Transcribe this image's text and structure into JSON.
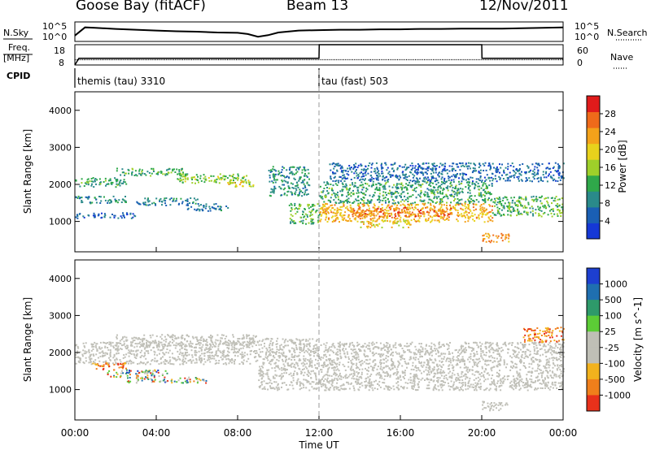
{
  "header": {
    "station": "Goose Bay (fitACF)",
    "beam": "Beam 13",
    "date": "12/Nov/2011"
  },
  "aux": {
    "nsky_label": "N.Sky",
    "nsearch_label": "N.Search",
    "freq_label_1": "Freq.",
    "freq_label_2": "[MHz]",
    "nave_label": "Nave",
    "cpid_label": "CPID",
    "noise_ticks": [
      "10^5",
      "10^0"
    ],
    "freq_ticks": [
      "18",
      "8"
    ],
    "nave_ticks": [
      "60",
      "0"
    ],
    "cpid_segments": [
      {
        "label": "themis (tau) 3310",
        "start_hour": 0,
        "end_hour": 12
      },
      {
        "label": "tau (fast) 503",
        "start_hour": 12,
        "end_hour": 24
      }
    ]
  },
  "colors": {
    "power_scale": [
      "#1538d6",
      "#1a5fb4",
      "#2a8a8a",
      "#2fa84a",
      "#9ed02a",
      "#e8d21c",
      "#f4a21a",
      "#ef6a1a",
      "#e01b1b"
    ],
    "velocity_scale": [
      "#1d3fd0",
      "#1f6fb0",
      "#2e9a6a",
      "#5ccc36",
      "#bfbfb6",
      "#bfbfb6",
      "#f2b21d",
      "#f07f1b",
      "#e8311b"
    ],
    "ground_scatter": "#c0c0b8"
  },
  "chart_data": [
    {
      "type": "line",
      "panel": "noise",
      "x_unit": "hour UT",
      "x": [
        0,
        0.5,
        1,
        2,
        3,
        4,
        5,
        6,
        7,
        8,
        8.5,
        9,
        9.5,
        10,
        11,
        12,
        13,
        14,
        15,
        16,
        17,
        18,
        19,
        20,
        21,
        22,
        23,
        24
      ],
      "series": [
        {
          "values": [
            1.5,
            3.6,
            3.5,
            3.2,
            3.0,
            2.8,
            2.6,
            2.5,
            2.3,
            2.2,
            1.9,
            1.2,
            1.6,
            2.3,
            2.8,
            2.9,
            3.0,
            3.0,
            3.1,
            3.1,
            3.2,
            3.2,
            3.3,
            3.3,
            3.3,
            3.4,
            3.5,
            3.6
          ]
        }
      ],
      "ylim": [
        0,
        5
      ]
    },
    {
      "type": "line",
      "panel": "frequency-nave",
      "x_unit": "hour UT",
      "x": [
        0,
        0.2,
        12,
        12.01,
        20,
        20.01,
        24
      ],
      "series": [
        {
          "values": [
            10.6,
            10.6,
            10.6,
            10.6,
            10.6,
            10.6,
            10.6
          ]
        },
        {
          "values": [
            0,
            20,
            20,
            60,
            60,
            20,
            20
          ]
        }
      ],
      "ylim": [
        8,
        18
      ]
    },
    {
      "type": "heatmap",
      "panel": "power",
      "title": "",
      "xlabel": "",
      "ylabel": "Slant Range [km]",
      "colorbar_label": "Power [dB]",
      "colorbar_ticks": [
        4,
        8,
        12,
        16,
        20,
        24,
        28
      ],
      "xlim": [
        0,
        24
      ],
      "ylim": [
        180,
        4500
      ],
      "y_ticks": [
        1000,
        2000,
        3000,
        4000
      ],
      "regions": [
        {
          "t0": 0.0,
          "t1": 2.5,
          "r0": 1950,
          "r1": 2200,
          "val": 11
        },
        {
          "t0": 0.0,
          "t1": 2.5,
          "r0": 1500,
          "r1": 1700,
          "val": 9
        },
        {
          "t0": 0.0,
          "t1": 3.0,
          "r0": 1100,
          "r1": 1250,
          "val": 6
        },
        {
          "t0": 2.0,
          "t1": 5.5,
          "r0": 2250,
          "r1": 2450,
          "val": 12
        },
        {
          "t0": 5.0,
          "t1": 8.5,
          "r0": 2050,
          "r1": 2300,
          "val": 15
        },
        {
          "t0": 7.5,
          "t1": 8.8,
          "r0": 1950,
          "r1": 2150,
          "val": 18
        },
        {
          "t0": 3.0,
          "t1": 6.0,
          "r0": 1450,
          "r1": 1650,
          "val": 8
        },
        {
          "t0": 5.5,
          "t1": 7.5,
          "r0": 1300,
          "r1": 1500,
          "val": 7
        },
        {
          "t0": 9.5,
          "t1": 11.5,
          "r0": 1700,
          "r1": 2500,
          "val": 10
        },
        {
          "t0": 10.5,
          "t1": 12.0,
          "r0": 950,
          "r1": 1500,
          "val": 13
        },
        {
          "t0": 12.0,
          "t1": 20.5,
          "r0": 1500,
          "r1": 2100,
          "val": 11
        },
        {
          "t0": 12.0,
          "t1": 20.5,
          "r0": 1000,
          "r1": 1500,
          "val": 22
        },
        {
          "t0": 13.5,
          "t1": 18.5,
          "r0": 1150,
          "r1": 1400,
          "val": 26
        },
        {
          "t0": 14.0,
          "t1": 16.5,
          "r0": 850,
          "r1": 1050,
          "val": 20
        },
        {
          "t0": 20.5,
          "t1": 24.0,
          "r0": 1150,
          "r1": 1700,
          "val": 13
        },
        {
          "t0": 12.5,
          "t1": 24.0,
          "r0": 2100,
          "r1": 2600,
          "val": 6
        },
        {
          "t0": 20.0,
          "t1": 21.3,
          "r0": 450,
          "r1": 700,
          "val": 24
        }
      ]
    },
    {
      "type": "heatmap",
      "panel": "velocity",
      "title": "",
      "xlabel": "Time UT",
      "ylabel": "Slant Range [km]",
      "colorbar_label": "Velocity [m s^-1]",
      "colorbar_ticks": [
        "1000",
        "500",
        "100",
        "25",
        "-25",
        "-100",
        "-500",
        "-1000"
      ],
      "xlim": [
        0,
        24
      ],
      "ylim": [
        180,
        4500
      ],
      "x_ticks": [
        "00:00",
        "04:00",
        "08:00",
        "12:00",
        "16:00",
        "20:00",
        "00:00"
      ],
      "y_ticks": [
        1000,
        2000,
        3000,
        4000
      ],
      "regions": [
        {
          "t0": 0.0,
          "t1": 9.0,
          "r0": 1700,
          "r1": 2300,
          "cls": "gs"
        },
        {
          "t0": 2.0,
          "t1": 9.0,
          "r0": 2200,
          "r1": 2500,
          "cls": "gs"
        },
        {
          "t0": 9.0,
          "t1": 12.0,
          "r0": 1000,
          "r1": 2400,
          "cls": "gs"
        },
        {
          "t0": 12.0,
          "t1": 24.0,
          "r0": 1000,
          "r1": 1700,
          "cls": "gs"
        },
        {
          "t0": 12.0,
          "t1": 24.0,
          "r0": 1700,
          "r1": 2300,
          "cls": "gs"
        },
        {
          "t0": 20.0,
          "t1": 21.3,
          "r0": 450,
          "r1": 700,
          "cls": "gs"
        },
        {
          "t0": 1.5,
          "t1": 4.5,
          "r0": 1350,
          "r1": 1550,
          "cls": "mix"
        },
        {
          "t0": 2.5,
          "t1": 6.5,
          "r0": 1200,
          "r1": 1350,
          "cls": "mix"
        },
        {
          "t0": 0.8,
          "t1": 2.5,
          "r0": 1550,
          "r1": 1750,
          "cls": "neg"
        },
        {
          "t0": 22.0,
          "t1": 24.0,
          "r0": 2300,
          "r1": 2700,
          "cls": "neg"
        }
      ]
    }
  ]
}
